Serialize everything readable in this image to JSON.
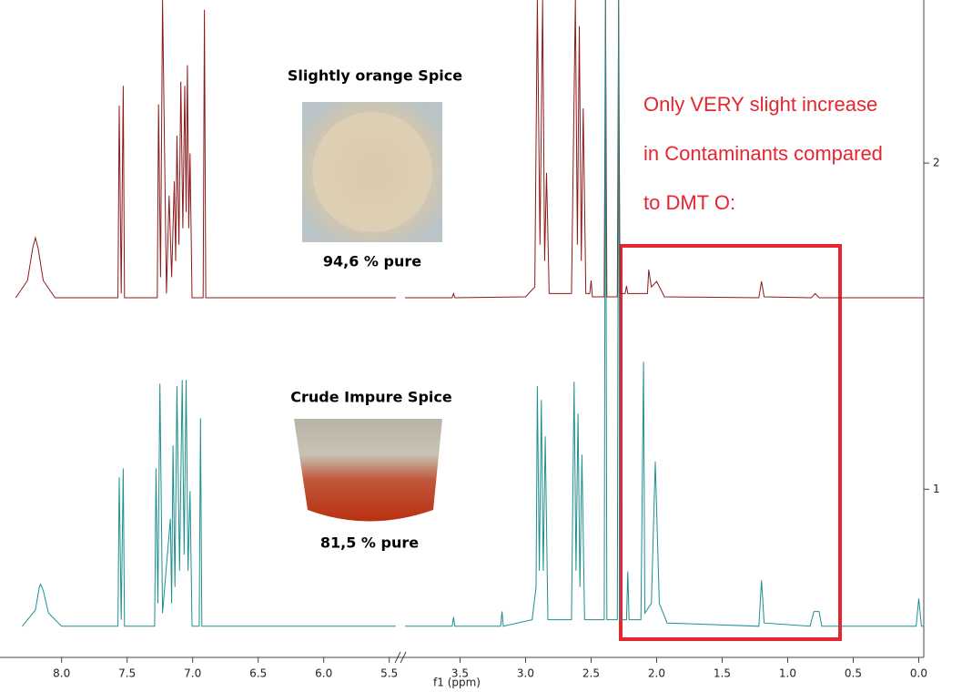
{
  "chart_data": {
    "type": "line",
    "x_label": "f1 (ppm)",
    "xlim": [
      8.47,
      -0.05
    ],
    "x_break": [
      5.45,
      3.92
    ],
    "ylim": [
      0.49,
      2.5
    ],
    "xticks": [
      {
        "value": 8,
        "label": "8.0"
      },
      7.5,
      {
        "value": 7,
        "label": "7.0"
      },
      6.5,
      {
        "value": 6,
        "label": "6.0"
      },
      5.5,
      3.5,
      {
        "value": 3,
        "label": "3.0"
      },
      2.5,
      {
        "value": 2,
        "label": "2.0"
      },
      1.5,
      {
        "value": 1,
        "label": "1.0"
      },
      0.5,
      {
        "value": 0,
        "label": "0.0"
      }
    ],
    "yticks": [
      1,
      2
    ],
    "series": [
      {
        "color": "#8b1a1a",
        "x": [
          8.35,
          8.26,
          8.22,
          8.2,
          8.18,
          8.14,
          8.05,
          7.57,
          7.56,
          7.545,
          7.53,
          7.52,
          7.27,
          7.26,
          7.245,
          7.23,
          7.2,
          7.18,
          7.16,
          7.14,
          7.13,
          7.12,
          7.105,
          7.09,
          7.075,
          7.06,
          7.05,
          7.04,
          7.03,
          7.02,
          7.005,
          6.92,
          6.91,
          6.9,
          5.45,
          3.92,
          3.56,
          3.55,
          3.54,
          3.0,
          2.93,
          2.91,
          2.89,
          2.87,
          2.855,
          2.84,
          2.82,
          2.65,
          2.62,
          2.605,
          2.59,
          2.575,
          2.56,
          2.54,
          2.51,
          2.5,
          2.49,
          2.4,
          2.39,
          2.38,
          2.3,
          2.29,
          2.28,
          2.24,
          2.23,
          2.22,
          2.07,
          2.06,
          2.04,
          2.0,
          1.94,
          1.22,
          1.2,
          1.18,
          0.82,
          0.79,
          0.76,
          -0.05
        ],
        "values": [
          1.587,
          1.64,
          1.74,
          1.771,
          1.74,
          1.64,
          1.587,
          1.587,
          2.176,
          1.6,
          2.237,
          1.587,
          1.587,
          2.18,
          1.65,
          2.5,
          1.6,
          1.9,
          1.65,
          1.944,
          1.7,
          2.084,
          1.75,
          2.25,
          1.8,
          2.237,
          1.85,
          2.3,
          1.8,
          2.03,
          1.587,
          1.587,
          2.47,
          1.587,
          1.587,
          1.587,
          1.587,
          1.6,
          1.587,
          1.59,
          1.62,
          2.5,
          1.75,
          2.5,
          1.7,
          1.97,
          1.6,
          1.6,
          2.5,
          1.75,
          2.42,
          1.7,
          2.168,
          1.6,
          1.6,
          1.64,
          1.59,
          1.59,
          2.5,
          1.59,
          1.59,
          2.5,
          1.6,
          1.6,
          1.623,
          1.6,
          1.6,
          1.673,
          1.62,
          1.637,
          1.59,
          1.587,
          1.637,
          1.59,
          1.587,
          1.6,
          1.587,
          1.587
        ]
      },
      {
        "color": "#1f8f8f",
        "x": [
          8.3,
          8.2,
          8.17,
          8.16,
          8.14,
          8.1,
          8.0,
          7.57,
          7.56,
          7.545,
          7.53,
          7.52,
          7.29,
          7.28,
          7.265,
          7.25,
          7.23,
          7.17,
          7.16,
          7.15,
          7.135,
          7.12,
          7.1,
          7.08,
          7.065,
          7.05,
          7.035,
          7.02,
          7.005,
          6.95,
          6.94,
          6.93,
          5.45,
          3.92,
          3.56,
          3.55,
          3.54,
          3.19,
          3.18,
          3.17,
          2.95,
          2.92,
          2.91,
          2.895,
          2.88,
          2.865,
          2.85,
          2.83,
          2.65,
          2.63,
          2.615,
          2.6,
          2.585,
          2.57,
          2.55,
          2.4,
          2.39,
          2.38,
          2.3,
          2.29,
          2.28,
          2.23,
          2.22,
          2.21,
          2.12,
          2.1,
          2.09,
          2.04,
          2.01,
          1.98,
          1.92,
          1.22,
          1.2,
          1.18,
          0.83,
          0.8,
          0.76,
          0.74,
          0.02,
          0.0,
          -0.02,
          -0.05
        ],
        "values": [
          0.58,
          0.63,
          0.7,
          0.709,
          0.69,
          0.62,
          0.58,
          0.58,
          1.036,
          0.6,
          1.064,
          0.58,
          0.58,
          1.064,
          0.65,
          1.324,
          0.62,
          0.91,
          0.65,
          1.134,
          0.7,
          1.316,
          0.75,
          1.335,
          0.8,
          1.335,
          0.75,
          0.994,
          0.58,
          0.58,
          1.218,
          0.58,
          0.58,
          0.58,
          0.58,
          0.608,
          0.58,
          0.58,
          0.625,
          0.58,
          0.6,
          0.7,
          1.316,
          0.75,
          1.274,
          0.75,
          1.162,
          0.6,
          0.6,
          1.33,
          0.75,
          1.232,
          0.7,
          1.106,
          0.6,
          0.6,
          2.5,
          0.6,
          0.6,
          2.5,
          0.6,
          0.6,
          0.748,
          0.6,
          0.6,
          1.391,
          0.62,
          0.65,
          1.084,
          0.65,
          0.59,
          0.58,
          0.721,
          0.59,
          0.58,
          0.625,
          0.625,
          0.58,
          0.58,
          0.665,
          0.58,
          0.58
        ]
      }
    ],
    "annotations": [
      "Slightly orange Spice",
      "94,6 % pure",
      "Crude Impure Spice",
      "81,5 % pure",
      "Only VERY slight increase",
      "in Contaminants compared",
      "to DMT O:"
    ]
  }
}
